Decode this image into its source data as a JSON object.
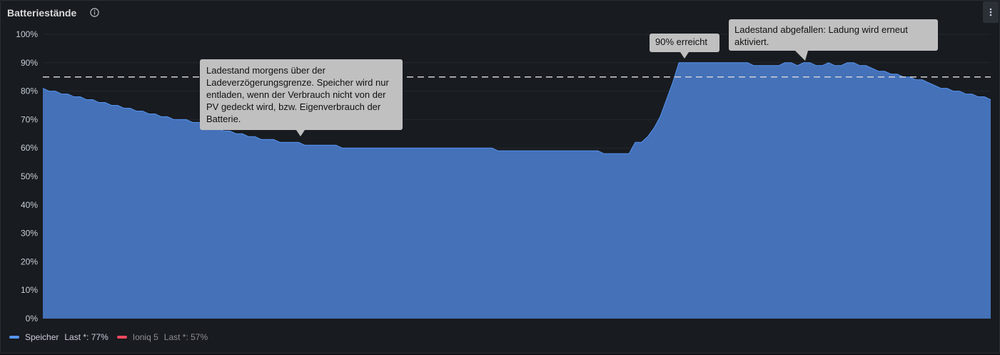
{
  "panel": {
    "title": "Batteriestände",
    "info_icon": "info-circle-icon",
    "menu_icon": "kebab-menu-icon"
  },
  "chart_data": {
    "type": "area",
    "ylim": [
      0,
      100
    ],
    "y_ticks": [
      "0%",
      "10%",
      "20%",
      "30%",
      "40%",
      "50%",
      "60%",
      "70%",
      "80%",
      "90%",
      "100%"
    ],
    "grid": true,
    "threshold": 85,
    "series": [
      {
        "name": "Speicher",
        "color": "#5794f2",
        "fill": "#4471b8",
        "values": [
          81,
          80,
          80,
          79,
          79,
          78,
          78,
          77,
          77,
          76,
          76,
          75,
          75,
          74,
          74,
          73,
          73,
          72,
          72,
          71,
          71,
          70,
          70,
          70,
          69,
          69,
          68,
          68,
          67,
          66,
          66,
          65,
          65,
          64,
          64,
          63,
          63,
          63,
          62,
          62,
          62,
          62,
          61,
          61,
          61,
          61,
          61,
          61,
          60,
          60,
          60,
          60,
          60,
          60,
          60,
          60,
          60,
          60,
          60,
          60,
          60,
          60,
          60,
          60,
          60,
          60,
          60,
          60,
          60,
          60,
          60,
          60,
          60,
          59,
          59,
          59,
          59,
          59,
          59,
          59,
          59,
          59,
          59,
          59,
          59,
          59,
          59,
          59,
          59,
          59,
          58,
          58,
          58,
          58,
          58,
          62,
          62,
          64,
          67,
          71,
          77,
          83,
          90,
          90,
          90,
          90,
          90,
          90,
          90,
          90,
          90,
          90,
          90,
          90,
          89,
          89,
          89,
          89,
          89,
          90,
          90,
          89,
          90,
          90,
          89,
          89,
          90,
          89,
          89,
          90,
          90,
          89,
          89,
          88,
          87,
          87,
          86,
          86,
          85,
          85,
          84,
          84,
          83,
          82,
          81,
          81,
          80,
          80,
          79,
          79,
          78,
          78,
          77
        ]
      },
      {
        "name": "Ioniq 5",
        "color": "#f2495c",
        "values": []
      }
    ]
  },
  "legend": [
    {
      "name": "Speicher",
      "stat": "Last *: 77%",
      "color": "#5794f2"
    },
    {
      "name": "Ioniq 5",
      "stat": "Last *: 57%",
      "color": "#f2495c"
    }
  ],
  "annotations": [
    {
      "text": "Ladestand morgens über der Ladeverzögerungsgrenze. Speicher wird nur entladen, wenn der Verbrauch nicht von der PV gedeckt wird, bzw. Eigenverbrauch der Batterie."
    },
    {
      "text": "90% erreicht"
    },
    {
      "text": "Ladestand abgefallen: Ladung wird erneut aktiviert."
    }
  ]
}
